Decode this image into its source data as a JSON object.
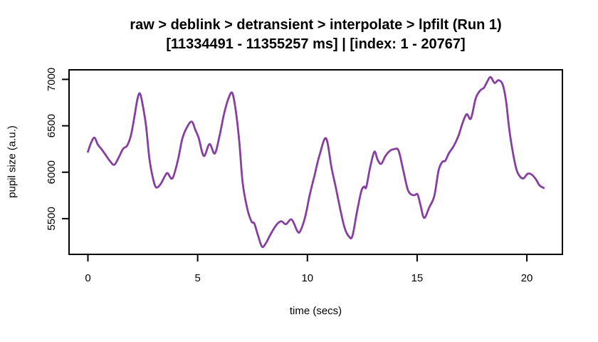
{
  "colors": {
    "line": "#863FA0",
    "axis": "#000000",
    "background": "#FFFFFF"
  },
  "chart_data": {
    "type": "line",
    "title": "raw > deblink > detransient > interpolate > lpfilt (Run 1)",
    "subtitle": "[11334491 - 11355257 ms] | [index: 1 - 20767]",
    "xlabel": "time (secs)",
    "ylabel": "pupil size (a.u.)",
    "x_ticks": [
      0,
      5,
      10,
      15,
      20
    ],
    "y_ticks": [
      5500,
      6000,
      6500,
      7000
    ],
    "xlim": [
      -0.86,
      21.62
    ],
    "ylim": [
      5115,
      7103
    ],
    "grid": false,
    "legend": false,
    "series": [
      {
        "name": "pupil_size",
        "color": "#863FA0",
        "x": [
          0.0,
          0.15,
          0.3,
          0.45,
          0.6,
          0.8,
          1.0,
          1.2,
          1.4,
          1.6,
          1.78,
          1.95,
          2.1,
          2.25,
          2.37,
          2.5,
          2.65,
          2.8,
          2.95,
          3.1,
          3.3,
          3.5,
          3.63,
          3.85,
          4.1,
          4.3,
          4.5,
          4.73,
          4.9,
          5.05,
          5.28,
          5.54,
          5.78,
          6.0,
          6.2,
          6.4,
          6.58,
          6.75,
          6.9,
          7.05,
          7.25,
          7.45,
          7.58,
          7.75,
          7.93,
          8.1,
          8.32,
          8.58,
          8.8,
          9.02,
          9.28,
          9.55,
          9.68,
          9.9,
          10.1,
          10.32,
          10.55,
          10.85,
          11.1,
          11.3,
          11.5,
          11.7,
          11.9,
          12.05,
          12.25,
          12.45,
          12.58,
          12.68,
          12.85,
          13.05,
          13.2,
          13.36,
          13.55,
          13.75,
          13.95,
          14.15,
          14.35,
          14.55,
          14.7,
          14.88,
          15.02,
          15.15,
          15.32,
          15.55,
          15.78,
          15.98,
          16.15,
          16.28,
          16.45,
          16.67,
          16.88,
          17.08,
          17.26,
          17.45,
          17.67,
          17.87,
          18.04,
          18.15,
          18.34,
          18.53,
          18.71,
          18.9,
          19.05,
          19.2,
          19.37,
          19.53,
          19.7,
          19.85,
          20.03,
          20.2,
          20.4,
          20.58,
          20.77
        ],
        "y": [
          6220,
          6320,
          6372,
          6298,
          6255,
          6188,
          6122,
          6080,
          6158,
          6252,
          6285,
          6388,
          6570,
          6782,
          6848,
          6718,
          6495,
          6150,
          5948,
          5838,
          5868,
          5955,
          5990,
          5934,
          6130,
          6360,
          6478,
          6545,
          6452,
          6368,
          6175,
          6303,
          6202,
          6395,
          6625,
          6792,
          6852,
          6640,
          6320,
          5890,
          5618,
          5470,
          5448,
          5320,
          5198,
          5232,
          5330,
          5430,
          5472,
          5440,
          5490,
          5362,
          5368,
          5520,
          5748,
          5962,
          6180,
          6365,
          6048,
          5828,
          5598,
          5398,
          5305,
          5312,
          5560,
          5790,
          5845,
          5838,
          6040,
          6220,
          6135,
          6090,
          6172,
          6228,
          6248,
          6235,
          6040,
          5830,
          5765,
          5752,
          5762,
          5650,
          5508,
          5620,
          5742,
          6020,
          6112,
          6122,
          6205,
          6283,
          6390,
          6535,
          6625,
          6578,
          6795,
          6880,
          6908,
          6955,
          7025,
          6962,
          6992,
          6945,
          6770,
          6460,
          6205,
          6025,
          5950,
          5934,
          5982,
          5978,
          5928,
          5858,
          5830
        ]
      }
    ]
  }
}
